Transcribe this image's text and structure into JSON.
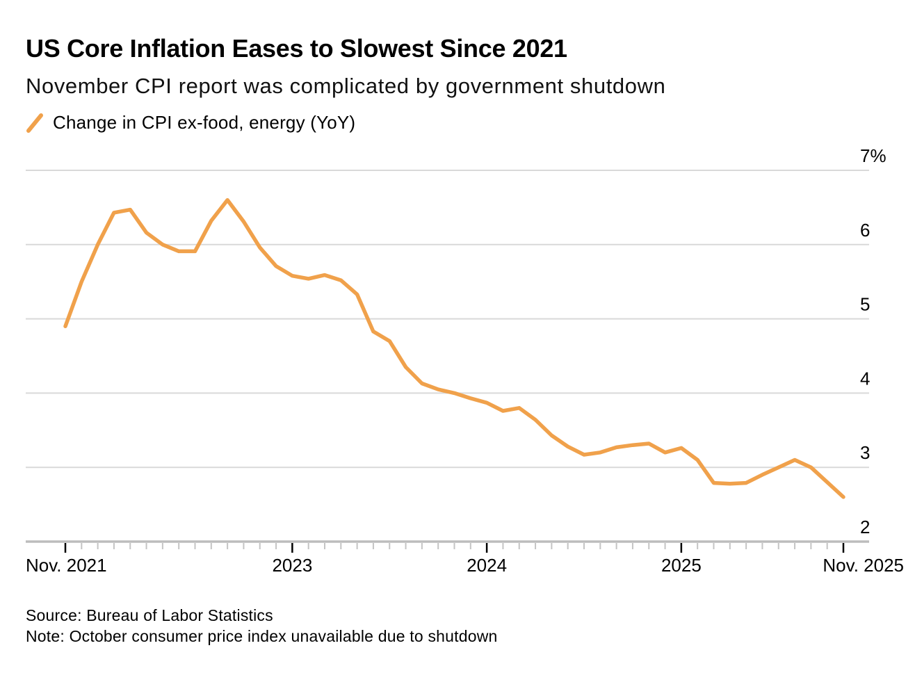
{
  "header": {
    "title": "US Core Inflation Eases to Slowest Since 2021",
    "subtitle": "November CPI report was complicated by government shutdown"
  },
  "legend": {
    "marker_icon": "slash-icon",
    "label": "Change in CPI ex-food, energy (YoY)"
  },
  "footer": {
    "source": "Source: Bureau of Labor Statistics",
    "note": "Note: October consumer price index unavailable due to shutdown"
  },
  "colors": {
    "line": "#F0A14B",
    "gridline": "#D9D9D9",
    "axis_line": "#BDBDBD",
    "minor_tick": "#C4C4C4",
    "major_tick": "#000000",
    "text": "#000000",
    "background": "#FFFFFF"
  },
  "chart_data": {
    "type": "line",
    "title": "US Core Inflation Eases to Slowest Since 2021",
    "series_name": "Change in CPI ex-food, energy (YoY)",
    "unit": "%",
    "grid": "horizontal-only",
    "legend_position": "top-left",
    "data_note": "October 2025 point missing due to government shutdown; line connects Sep 2025 to Nov 2025",
    "y_axis": {
      "side": "right",
      "min": 2,
      "max": 7,
      "tick_values": [
        7,
        6,
        5,
        4,
        3,
        2
      ],
      "tick_labels": [
        "7%",
        "6",
        "5",
        "4",
        "3",
        "2"
      ]
    },
    "x_axis": {
      "start": "Nov 2021",
      "end": "Nov 2025",
      "months_total": 48,
      "minor_tick_every_months": 1,
      "major_ticks": [
        {
          "label": "Nov. 2021",
          "month": 0,
          "align": "left"
        },
        {
          "label": "2023",
          "month": 14,
          "align": "center"
        },
        {
          "label": "2024",
          "month": 26,
          "align": "center"
        },
        {
          "label": "2025",
          "month": 38,
          "align": "center"
        },
        {
          "label": "Nov. 2025",
          "month": 48,
          "align": "right"
        }
      ]
    },
    "points": [
      {
        "date": "2021-11",
        "v": 4.9
      },
      {
        "date": "2021-12",
        "v": 5.5
      },
      {
        "date": "2022-01",
        "v": 6.0
      },
      {
        "date": "2022-02",
        "v": 6.43
      },
      {
        "date": "2022-03",
        "v": 6.47
      },
      {
        "date": "2022-04",
        "v": 6.16
      },
      {
        "date": "2022-05",
        "v": 6.0
      },
      {
        "date": "2022-06",
        "v": 5.91
      },
      {
        "date": "2022-07",
        "v": 5.91
      },
      {
        "date": "2022-08",
        "v": 6.32
      },
      {
        "date": "2022-09",
        "v": 6.6
      },
      {
        "date": "2022-10",
        "v": 6.31
      },
      {
        "date": "2022-11",
        "v": 5.96
      },
      {
        "date": "2022-12",
        "v": 5.71
      },
      {
        "date": "2023-01",
        "v": 5.58
      },
      {
        "date": "2023-02",
        "v": 5.54
      },
      {
        "date": "2023-03",
        "v": 5.59
      },
      {
        "date": "2023-04",
        "v": 5.52
      },
      {
        "date": "2023-05",
        "v": 5.33
      },
      {
        "date": "2023-06",
        "v": 4.83
      },
      {
        "date": "2023-07",
        "v": 4.7
      },
      {
        "date": "2023-08",
        "v": 4.35
      },
      {
        "date": "2023-09",
        "v": 4.13
      },
      {
        "date": "2023-10",
        "v": 4.05
      },
      {
        "date": "2023-11",
        "v": 4.0
      },
      {
        "date": "2023-12",
        "v": 3.93
      },
      {
        "date": "2024-01",
        "v": 3.87
      },
      {
        "date": "2024-02",
        "v": 3.76
      },
      {
        "date": "2024-03",
        "v": 3.8
      },
      {
        "date": "2024-04",
        "v": 3.64
      },
      {
        "date": "2024-05",
        "v": 3.43
      },
      {
        "date": "2024-06",
        "v": 3.28
      },
      {
        "date": "2024-07",
        "v": 3.17
      },
      {
        "date": "2024-08",
        "v": 3.2
      },
      {
        "date": "2024-09",
        "v": 3.27
      },
      {
        "date": "2024-10",
        "v": 3.3
      },
      {
        "date": "2024-11",
        "v": 3.32
      },
      {
        "date": "2024-12",
        "v": 3.2
      },
      {
        "date": "2025-01",
        "v": 3.26
      },
      {
        "date": "2025-02",
        "v": 3.1
      },
      {
        "date": "2025-03",
        "v": 2.79
      },
      {
        "date": "2025-04",
        "v": 2.78
      },
      {
        "date": "2025-05",
        "v": 2.79
      },
      {
        "date": "2025-06",
        "v": 2.9
      },
      {
        "date": "2025-07",
        "v": 3.0
      },
      {
        "date": "2025-08",
        "v": 3.1
      },
      {
        "date": "2025-09",
        "v": 3.0
      },
      {
        "date": "2025-11",
        "v": 2.6
      }
    ]
  }
}
